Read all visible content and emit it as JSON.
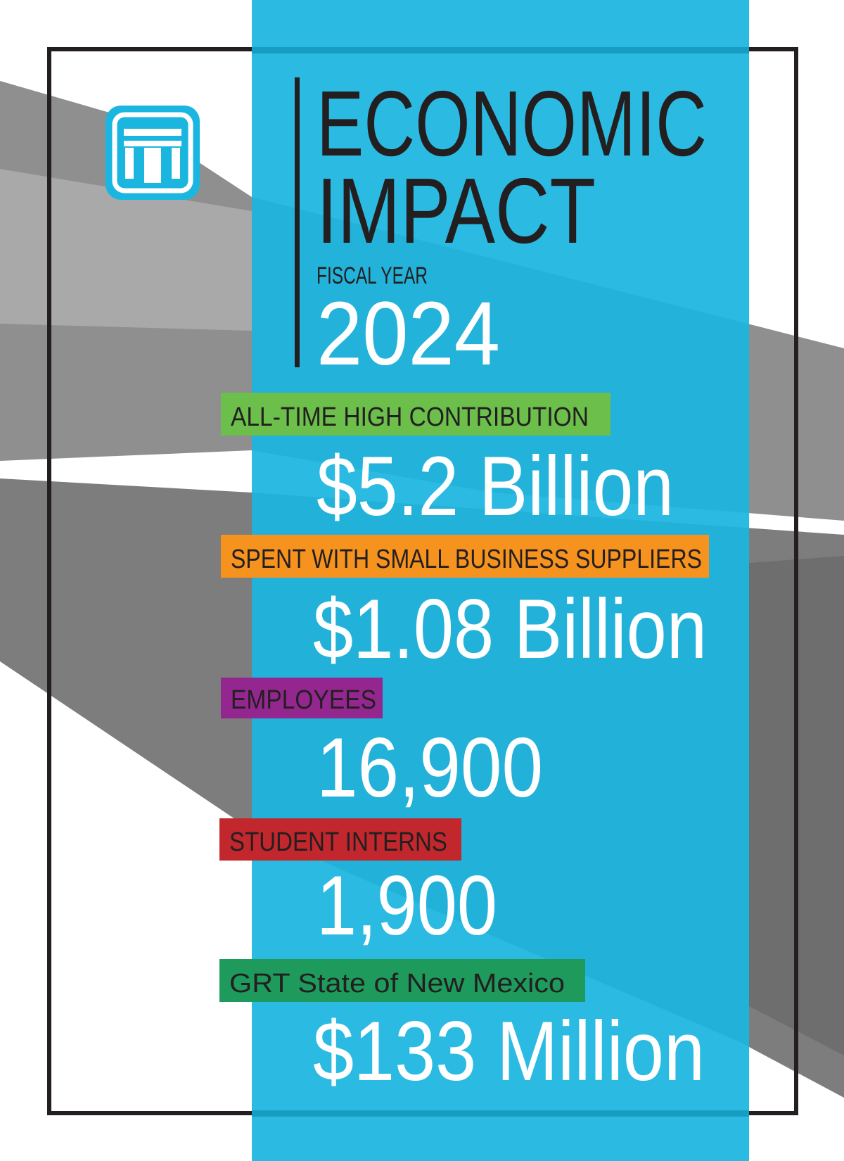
{
  "header": {
    "title_line1": "ECONOMIC",
    "title_line2": "IMPACT",
    "subtitle": "FISCAL YEAR",
    "year": "2024"
  },
  "stats": [
    {
      "label": "ALL-TIME HIGH CONTRIBUTION",
      "value": "$5.2 Billion",
      "color": "#6bbf4a"
    },
    {
      "label": "SPENT WITH SMALL BUSINESS SUPPLIERS",
      "value": "$1.08 Billion",
      "color": "#f6921e"
    },
    {
      "label": "EMPLOYEES",
      "value": "16,900",
      "color": "#93278f"
    },
    {
      "label": "STUDENT INTERNS",
      "value": "1,900",
      "color": "#c1272d"
    },
    {
      "label": "GRT State of New Mexico",
      "value": "$133 Million",
      "color": "#1d9a5c"
    }
  ]
}
